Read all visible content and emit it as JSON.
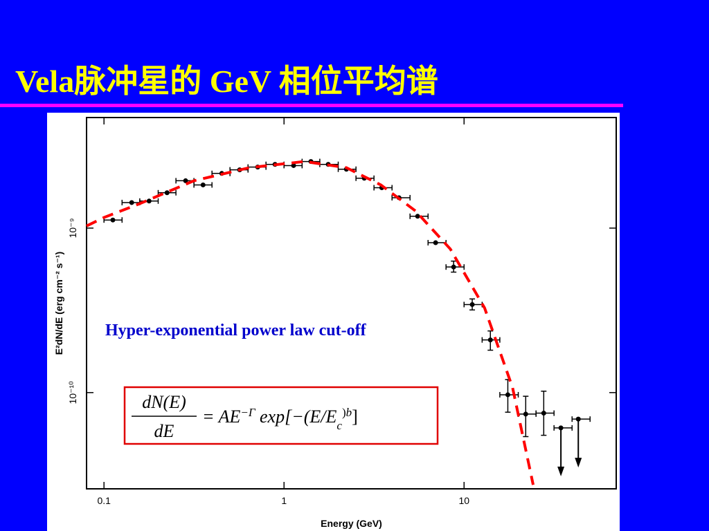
{
  "slide_title": "Vela脉冲星的 GeV 相位平均谱",
  "chart_data": {
    "type": "scatter",
    "log_x": true,
    "log_y": true,
    "xlabel": "Energy (GeV)",
    "ylabel": "E²dN/dE (erg cm⁻² s⁻¹)",
    "xlim": [
      0.08,
      70
    ],
    "ylim": [
      2.6e-11,
      4.7e-09
    ],
    "xticks": [
      0.1,
      1,
      10
    ],
    "yticks": [
      {
        "value": 1e-10,
        "label": "10⁻¹⁰"
      },
      {
        "value": 1e-09,
        "label": "10⁻⁹"
      }
    ],
    "annotation": "Hyper-exponential power law cut-off",
    "formula": {
      "numerator": "dN(E)",
      "denominator": "dE",
      "rhs": [
        "= AE",
        "−Γ",
        " exp[−(E/E",
        "c",
        ")",
        "b",
        "]"
      ]
    },
    "series": [
      {
        "color": "#000000",
        "x": [
          0.112,
          0.1425,
          0.178,
          0.224,
          0.284,
          0.355,
          0.451,
          0.567,
          0.714,
          0.891,
          1.13,
          1.41,
          1.76,
          2.22,
          2.79,
          3.49,
          4.35,
          5.52,
          6.95,
          8.75,
          11.1,
          14.0,
          17.5,
          22.0,
          27.7,
          34.5,
          43.1
        ],
        "values": [
          1.12e-09,
          1.43e-09,
          1.46e-09,
          1.64e-09,
          1.94e-09,
          1.83e-09,
          2.15e-09,
          2.26e-09,
          2.35e-09,
          2.44e-09,
          2.4e-09,
          2.54e-09,
          2.44e-09,
          2.28e-09,
          2.01e-09,
          1.76e-09,
          1.53e-09,
          1.18e-09,
          8.15e-10,
          5.8e-10,
          3.43e-10,
          2.09e-10,
          9.7e-11,
          7.4e-11,
          7.5e-11,
          6.1e-11,
          6.9e-11
        ],
        "bins": [
          0.1,
          0.126,
          0.158,
          0.2,
          0.251,
          0.316,
          0.398,
          0.501,
          0.631,
          0.794,
          1,
          1.26,
          1.58,
          2,
          2.51,
          3.16,
          3.98,
          5.01,
          6.31,
          7.94,
          10,
          12.6,
          15.8,
          20,
          25.1,
          31.6,
          39.8,
          50.1
        ],
        "y_low": [
          null,
          null,
          null,
          null,
          null,
          null,
          null,
          null,
          null,
          null,
          null,
          null,
          null,
          null,
          null,
          null,
          null,
          null,
          null,
          5.4e-10,
          3.18e-10,
          1.81e-10,
          7.6e-11,
          5.4e-11,
          5.5e-11,
          null,
          null
        ],
        "y_high": [
          null,
          null,
          null,
          null,
          null,
          null,
          null,
          null,
          null,
          null,
          null,
          null,
          null,
          null,
          null,
          null,
          null,
          null,
          null,
          6.3e-10,
          3.71e-10,
          2.37e-10,
          1.2e-10,
          9.5e-11,
          1.02e-10,
          null,
          null
        ],
        "upper_limit": [
          false,
          false,
          false,
          false,
          false,
          false,
          false,
          false,
          false,
          false,
          false,
          false,
          false,
          false,
          false,
          false,
          false,
          false,
          false,
          false,
          false,
          false,
          false,
          false,
          false,
          true,
          true
        ]
      },
      {
        "color": "#ff0000",
        "style": "dashed",
        "x": [
          0.08,
          0.1,
          0.156,
          0.316,
          0.642,
          1.3,
          2.22,
          3.45,
          5.38,
          8.38,
          13.0,
          18.6,
          24.2
        ],
        "values": [
          1.03e-09,
          1.16e-09,
          1.4e-09,
          1.94e-09,
          2.33e-09,
          2.54e-09,
          2.33e-09,
          1.83e-09,
          1.27e-09,
          7.47e-10,
          3.27e-10,
          1.07e-10,
          2.75e-11
        ]
      }
    ]
  }
}
